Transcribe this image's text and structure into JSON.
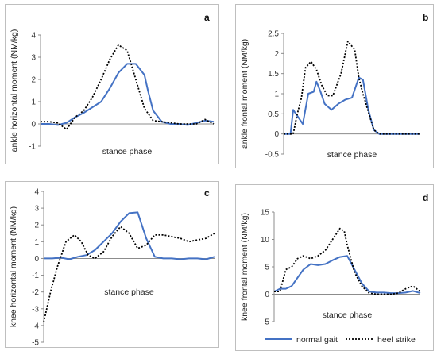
{
  "colors": {
    "normal": "#4472C4",
    "heel": "#000000",
    "axis": "#8c8c8c"
  },
  "legend": [
    {
      "name": "normal gait",
      "style": "solid"
    },
    {
      "name": "heel strike",
      "style": "dotted"
    }
  ],
  "chart_data": [
    {
      "type": "line",
      "panel": "a",
      "title": "",
      "xlabel": "stance phase",
      "ylabel": "ankle horizontal moment (NM/kg)",
      "ylim": [
        -1,
        4
      ],
      "yticks": [
        -1,
        0,
        1,
        2,
        3,
        4
      ],
      "ytick_labels": [
        "-1",
        "0",
        "1",
        "2",
        "3",
        "4"
      ],
      "grid": false,
      "series": [
        {
          "name": "normal gait",
          "x": [
            0,
            0.05,
            0.1,
            0.15,
            0.2,
            0.25,
            0.3,
            0.35,
            0.4,
            0.45,
            0.5,
            0.55,
            0.6,
            0.62,
            0.65,
            0.7,
            0.75,
            0.8,
            0.85,
            0.9,
            0.95,
            1.0
          ],
          "y": [
            0.0,
            0.0,
            -0.05,
            0.05,
            0.3,
            0.5,
            0.75,
            1.0,
            1.6,
            2.3,
            2.7,
            2.7,
            2.2,
            1.5,
            0.6,
            0.1,
            0.0,
            0.0,
            -0.05,
            0.05,
            0.15,
            0.1
          ]
        },
        {
          "name": "heel strike",
          "x": [
            0,
            0.05,
            0.1,
            0.15,
            0.2,
            0.25,
            0.3,
            0.35,
            0.4,
            0.45,
            0.5,
            0.55,
            0.6,
            0.65,
            0.7,
            0.75,
            0.8,
            0.85,
            0.9,
            0.95,
            1.0
          ],
          "y": [
            0.1,
            0.1,
            0.05,
            -0.25,
            0.3,
            0.6,
            1.2,
            2.0,
            2.9,
            3.55,
            3.3,
            2.0,
            0.7,
            0.15,
            0.1,
            0.05,
            0.0,
            0.0,
            0.0,
            0.2,
            0.0
          ]
        }
      ]
    },
    {
      "type": "line",
      "panel": "b",
      "title": "",
      "xlabel": "stance phase",
      "ylabel": "ankle frontal moment (NM/kg)",
      "ylim": [
        -0.5,
        2.5
      ],
      "yticks": [
        -0.5,
        0,
        0.5,
        1,
        1.5,
        2,
        2.5
      ],
      "ytick_labels": [
        "-0.5",
        "0",
        "0.5",
        "1",
        "1.5",
        "2",
        "2.5"
      ],
      "grid": false,
      "series": [
        {
          "name": "normal gait",
          "x": [
            0,
            0.05,
            0.07,
            0.1,
            0.14,
            0.18,
            0.22,
            0.24,
            0.27,
            0.3,
            0.35,
            0.4,
            0.45,
            0.5,
            0.55,
            0.58,
            0.62,
            0.66,
            0.7,
            0.75,
            0.8,
            0.9,
            1.0
          ],
          "y": [
            0,
            0,
            0.6,
            0.45,
            0.25,
            1.0,
            1.05,
            1.3,
            1.05,
            0.75,
            0.6,
            0.75,
            0.85,
            0.9,
            1.4,
            1.35,
            0.6,
            0.1,
            0.0,
            0.0,
            0.0,
            0.0,
            0.0
          ]
        },
        {
          "name": "heel strike",
          "x": [
            0,
            0.05,
            0.07,
            0.1,
            0.13,
            0.16,
            0.2,
            0.24,
            0.28,
            0.32,
            0.36,
            0.42,
            0.47,
            0.52,
            0.55,
            0.58,
            0.62,
            0.66,
            0.7,
            0.8,
            0.9,
            1.0
          ],
          "y": [
            0,
            0,
            0.0,
            0.5,
            0.9,
            1.65,
            1.8,
            1.6,
            1.2,
            0.95,
            0.95,
            1.5,
            2.3,
            2.1,
            1.4,
            1.0,
            0.55,
            0.1,
            0.0,
            0.0,
            0.0,
            0.0
          ]
        }
      ]
    },
    {
      "type": "line",
      "panel": "c",
      "title": "",
      "xlabel": "stance phase",
      "ylabel": "knee horizontal moment (NM/kg)",
      "ylim": [
        -5,
        4
      ],
      "yticks": [
        -5,
        -4,
        -3,
        -2,
        -1,
        0,
        1,
        2,
        3,
        4
      ],
      "ytick_labels": [
        "-5",
        "-4",
        "-3",
        "-2",
        "-1",
        "0",
        "1",
        "2",
        "3",
        "4"
      ],
      "grid": false,
      "series": [
        {
          "name": "normal gait",
          "x": [
            0,
            0.05,
            0.1,
            0.15,
            0.2,
            0.25,
            0.3,
            0.35,
            0.4,
            0.45,
            0.5,
            0.55,
            0.6,
            0.65,
            0.7,
            0.75,
            0.8,
            0.85,
            0.9,
            0.95,
            1.0
          ],
          "y": [
            0.0,
            0.0,
            0.05,
            -0.05,
            0.1,
            0.2,
            0.5,
            1.0,
            1.5,
            2.2,
            2.7,
            2.75,
            1.2,
            0.1,
            0.0,
            0.0,
            -0.05,
            0.0,
            0.0,
            -0.05,
            0.1
          ]
        },
        {
          "name": "heel strike",
          "x": [
            0,
            0.04,
            0.08,
            0.13,
            0.18,
            0.22,
            0.26,
            0.3,
            0.35,
            0.4,
            0.45,
            0.5,
            0.55,
            0.6,
            0.65,
            0.7,
            0.75,
            0.8,
            0.85,
            0.9,
            0.95,
            1.0
          ],
          "y": [
            -3.8,
            -2.0,
            -0.5,
            1.0,
            1.4,
            1.0,
            0.2,
            0.0,
            0.4,
            1.3,
            1.9,
            1.5,
            0.6,
            0.8,
            1.4,
            1.4,
            1.3,
            1.2,
            1.0,
            1.1,
            1.2,
            1.5
          ]
        }
      ]
    },
    {
      "type": "line",
      "panel": "d",
      "title": "",
      "xlabel": "stance phase",
      "ylabel": "knee frontal moment (NM/kg)",
      "ylim": [
        -5,
        15
      ],
      "yticks": [
        -5,
        0,
        5,
        10,
        15
      ],
      "ytick_labels": [
        "-5",
        "0",
        "5",
        "10",
        "15"
      ],
      "grid": false,
      "series": [
        {
          "name": "normal gait",
          "x": [
            0,
            0.04,
            0.08,
            0.12,
            0.16,
            0.2,
            0.25,
            0.3,
            0.35,
            0.4,
            0.45,
            0.5,
            0.55,
            0.6,
            0.65,
            0.7,
            0.75,
            0.8,
            0.85,
            0.9,
            0.95,
            1.0
          ],
          "y": [
            0.5,
            1.0,
            1.0,
            1.5,
            3.0,
            4.5,
            5.5,
            5.3,
            5.5,
            6.2,
            6.8,
            7.0,
            4.5,
            2.0,
            0.5,
            0.3,
            0.3,
            0.2,
            0.2,
            0.3,
            0.6,
            0.2
          ]
        },
        {
          "name": "heel strike",
          "x": [
            0,
            0.04,
            0.08,
            0.12,
            0.16,
            0.2,
            0.25,
            0.3,
            0.35,
            0.4,
            0.45,
            0.48,
            0.5,
            0.55,
            0.6,
            0.65,
            0.7,
            0.75,
            0.8,
            0.85,
            0.9,
            0.95,
            1.0
          ],
          "y": [
            0.5,
            0.5,
            4.5,
            5.0,
            6.5,
            7.0,
            6.5,
            7.0,
            8.0,
            10.0,
            12.0,
            11.5,
            9.0,
            4.0,
            1.5,
            0.2,
            0.0,
            0.0,
            0.0,
            0.2,
            1.0,
            1.5,
            0.5
          ]
        }
      ]
    }
  ]
}
